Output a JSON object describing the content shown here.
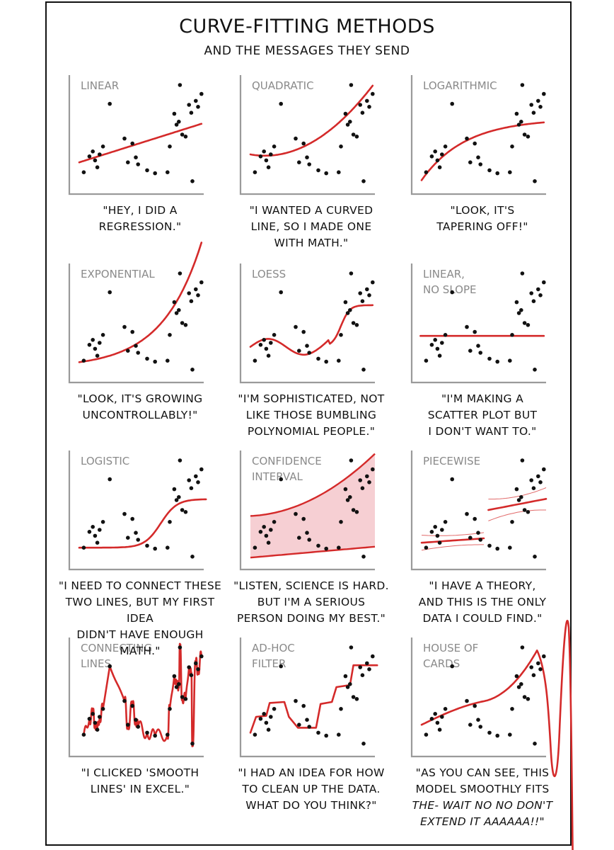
{
  "title": "CURVE-FITTING METHODS",
  "subtitle": "AND THE MESSAGES THEY SEND",
  "colors": {
    "fit_line": "#d42a2a",
    "confidence_fill": "#f6cfd3",
    "points": "#111111",
    "axes": "#9a9a9a",
    "label": "#8a8a8a"
  },
  "chart_data": {
    "type": "scatter",
    "points": [
      [
        0.04,
        0.12
      ],
      [
        0.09,
        0.28
      ],
      [
        0.12,
        0.33
      ],
      [
        0.14,
        0.24
      ],
      [
        0.16,
        0.17
      ],
      [
        0.18,
        0.3
      ],
      [
        0.21,
        0.38
      ],
      [
        0.27,
        0.81
      ],
      [
        0.4,
        0.46
      ],
      [
        0.43,
        0.22
      ],
      [
        0.47,
        0.41
      ],
      [
        0.5,
        0.27
      ],
      [
        0.52,
        0.2
      ],
      [
        0.6,
        0.14
      ],
      [
        0.67,
        0.11
      ],
      [
        0.78,
        0.12
      ],
      [
        0.8,
        0.38
      ],
      [
        0.84,
        0.71
      ],
      [
        0.86,
        0.6
      ],
      [
        0.88,
        0.63
      ],
      [
        0.89,
        1.0
      ],
      [
        0.91,
        0.5
      ],
      [
        0.94,
        0.48
      ],
      [
        0.97,
        0.8
      ],
      [
        0.99,
        0.72
      ],
      [
        1.0,
        0.03
      ],
      [
        1.03,
        0.84
      ],
      [
        1.05,
        0.78
      ],
      [
        1.08,
        0.91
      ]
    ],
    "panels": [
      {
        "id": "linear",
        "label": [
          "LINEAR"
        ],
        "caption": [
          "\"HEY, I DID A",
          "REGRESSION.\""
        ]
      },
      {
        "id": "quadratic",
        "label": [
          "QUADRATIC"
        ],
        "caption": [
          "\"I WANTED A CURVED",
          "LINE, SO I MADE ONE",
          "WITH MATH.\""
        ]
      },
      {
        "id": "logarithmic",
        "label": [
          "LOGARITHMIC"
        ],
        "caption": [
          "\"LOOK, IT'S",
          "TAPERING OFF!\""
        ]
      },
      {
        "id": "exponential",
        "label": [
          "EXPONENTIAL"
        ],
        "caption": [
          "\"LOOK, IT'S GROWING",
          "UNCONTROLLABLY!\""
        ]
      },
      {
        "id": "loess",
        "label": [
          "LOESS"
        ],
        "caption": [
          "\"I'M SOPHISTICATED, NOT",
          "LIKE THOSE BUMBLING",
          "POLYNOMIAL PEOPLE.\""
        ]
      },
      {
        "id": "linear-no-slope",
        "label": [
          "LINEAR,",
          "NO SLOPE"
        ],
        "caption": [
          "\"I'M MAKING A",
          "SCATTER PLOT BUT",
          "I DON'T WANT TO.\""
        ]
      },
      {
        "id": "logistic",
        "label": [
          "LOGISTIC"
        ],
        "caption": [
          "\"I NEED TO CONNECT THESE",
          "TWO LINES, BUT MY FIRST IDEA",
          "DIDN'T HAVE ENOUGH MATH.\""
        ]
      },
      {
        "id": "confidence-interval",
        "label": [
          "CONFIDENCE",
          "INTERVAL"
        ],
        "caption": [
          "\"LISTEN, SCIENCE IS HARD.",
          "BUT I'M A SERIOUS",
          "PERSON DOING MY BEST.\""
        ]
      },
      {
        "id": "piecewise",
        "label": [
          "PIECEWISE"
        ],
        "caption": [
          "\"I HAVE A THEORY,",
          "AND THIS IS THE ONLY",
          "DATA I COULD FIND.\""
        ]
      },
      {
        "id": "connecting-lines",
        "label": [
          "CONNECTING",
          "LINES"
        ],
        "caption": [
          "\"I CLICKED 'SMOOTH",
          "LINES' IN EXCEL.\""
        ]
      },
      {
        "id": "ad-hoc-filter",
        "label": [
          "AD-HOC",
          "FILTER"
        ],
        "caption": [
          "\"I HAD AN IDEA FOR HOW",
          "TO CLEAN UP THE DATA.",
          "WHAT DO YOU THINK?\""
        ]
      },
      {
        "id": "house-of-cards",
        "label": [
          "HOUSE OF",
          "CARDS"
        ],
        "caption": [
          "\"AS YOU CAN SEE, THIS",
          "MODEL SMOOTHLY FITS",
          "THE- WAIT NO NO DON'T",
          "EXTEND IT AAAAAA!!\""
        ]
      }
    ]
  }
}
